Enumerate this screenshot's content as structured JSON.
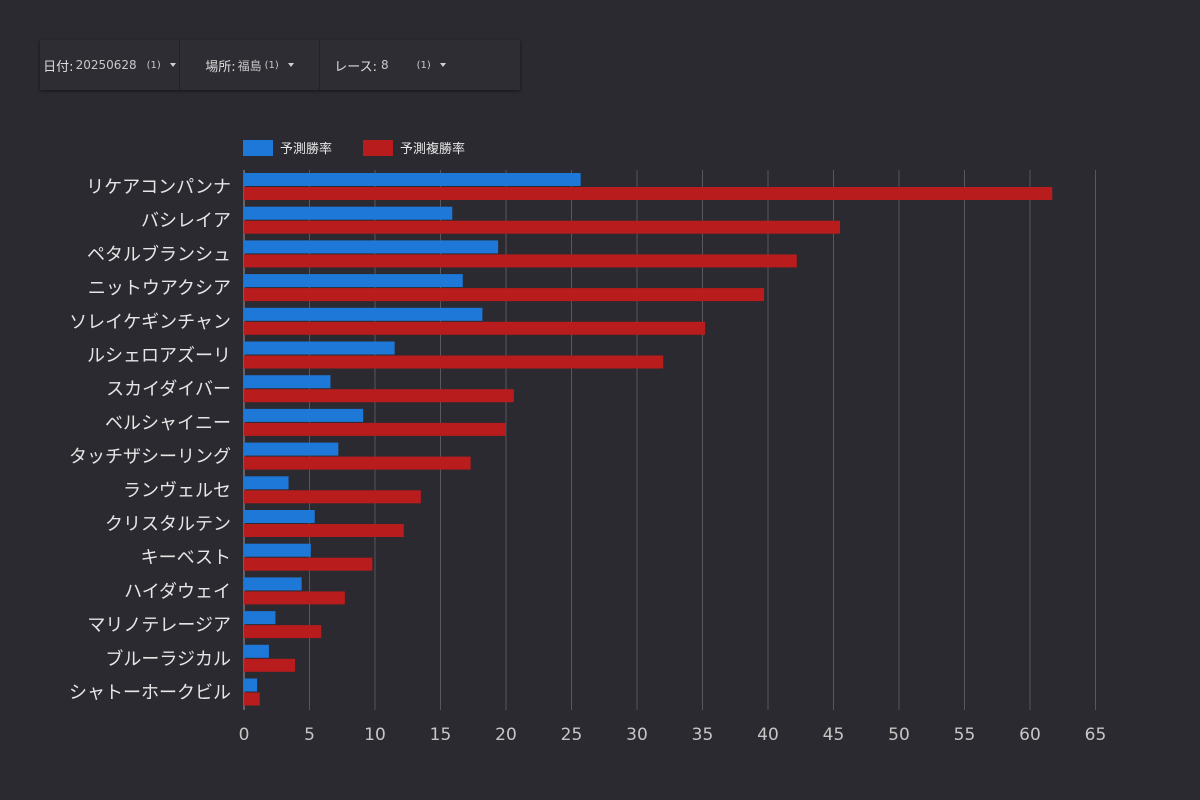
{
  "filters": [
    {
      "label": "日付:",
      "value": "20250628",
      "count": "(1)"
    },
    {
      "label": "場所:",
      "value": "福島",
      "count": "(1)"
    },
    {
      "label": "レース:",
      "value": "8",
      "count": "(1)"
    }
  ],
  "colors": {
    "win": "#1e78d8",
    "place": "#b81c1c",
    "grid": "#58575d",
    "text": "#e6e6e6",
    "tick": "#c6c6c6"
  },
  "chart_data": {
    "type": "bar",
    "orientation": "horizontal",
    "title": "",
    "xlabel": "",
    "ylabel": "",
    "xlim": [
      0,
      65
    ],
    "xticks": [
      0,
      5,
      10,
      15,
      20,
      25,
      30,
      35,
      40,
      45,
      50,
      55,
      60,
      65
    ],
    "grid": true,
    "legend_position": "top-left",
    "categories": [
      "リケアコンパンナ",
      "バシレイア",
      "ペタルブランシュ",
      "ニットウアクシア",
      "ソレイケギンチャン",
      "ルシェロアズーリ",
      "スカイダイバー",
      "ベルシャイニー",
      "タッチザシーリング",
      "ランヴェルセ",
      "クリスタルテン",
      "キーベスト",
      "ハイダウェイ",
      "マリノテレージア",
      "ブルーラジカル",
      "シャトーホークビル"
    ],
    "series": [
      {
        "name": "予測勝率",
        "color": "#1e78d8",
        "values": [
          25.7,
          15.9,
          19.4,
          16.7,
          18.2,
          11.5,
          6.6,
          9.1,
          7.2,
          3.4,
          5.4,
          5.1,
          4.4,
          2.4,
          1.9,
          1.0
        ]
      },
      {
        "name": "予測複勝率",
        "color": "#b81c1c",
        "values": [
          61.7,
          45.5,
          42.2,
          39.7,
          35.2,
          32.0,
          20.6,
          20.0,
          17.3,
          13.5,
          12.2,
          9.8,
          7.7,
          5.9,
          3.9,
          1.2
        ]
      }
    ]
  }
}
